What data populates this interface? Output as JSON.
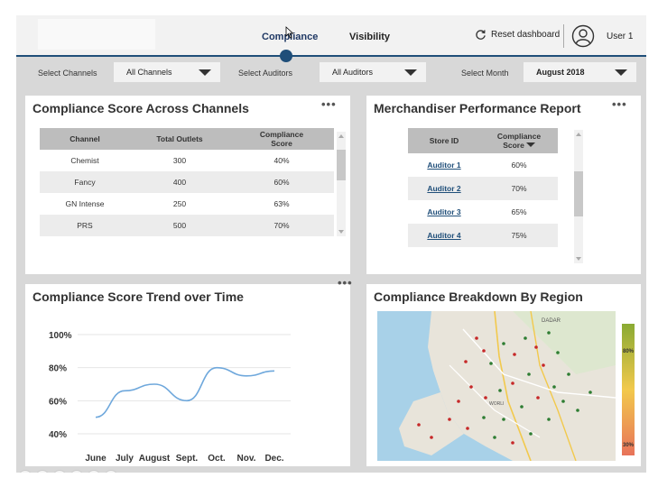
{
  "header": {
    "tabs": [
      {
        "label": "Compliance",
        "active": true
      },
      {
        "label": "Visibility",
        "active": false
      }
    ],
    "reset_label": "Reset dashboard",
    "user_label": "User 1"
  },
  "filters": [
    {
      "label": "Select Channels",
      "value": "All Channels"
    },
    {
      "label": "Select Auditors",
      "value": "All Auditors"
    },
    {
      "label": "Select Month",
      "value": "August 2018"
    }
  ],
  "score_panel": {
    "title": "Compliance Score Across Channels",
    "more": "•••",
    "columns": [
      "Channel",
      "Total Outlets",
      "Compliance Score"
    ],
    "rows": [
      [
        "Chemist",
        "300",
        "40%"
      ],
      [
        "Fancy",
        "400",
        "60%"
      ],
      [
        "GN Intense",
        "250",
        "63%"
      ],
      [
        "PRS",
        "500",
        "70%"
      ]
    ]
  },
  "merch_panel": {
    "title": "Merchandiser Performance Report",
    "more": "•••",
    "columns": [
      "Store ID",
      "Compliance Score"
    ],
    "rows": [
      [
        "Auditor 1",
        "60%"
      ],
      [
        "Auditor 2",
        "70%"
      ],
      [
        "Auditor 3",
        "65%"
      ],
      [
        "Auditor 4",
        "75%"
      ]
    ]
  },
  "trend_panel": {
    "title": "Compliance Score Trend over Time",
    "more": "•••"
  },
  "region_panel": {
    "title": "Compliance Breakdown By Region",
    "legend_max": "80%",
    "legend_min": "30%",
    "map_labels": [
      "DADAR",
      "WORLI"
    ]
  },
  "chart_data": {
    "type": "line",
    "categories": [
      "June",
      "July",
      "August",
      "Sept.",
      "Oct.",
      "Nov.",
      "Dec."
    ],
    "values": [
      50,
      66,
      70,
      60,
      80,
      75,
      78
    ],
    "y_ticks": [
      "40%",
      "60%",
      "80%",
      "100%"
    ],
    "ylim": [
      40,
      100
    ],
    "line_color": "#6fa8dc",
    "grid": true
  }
}
